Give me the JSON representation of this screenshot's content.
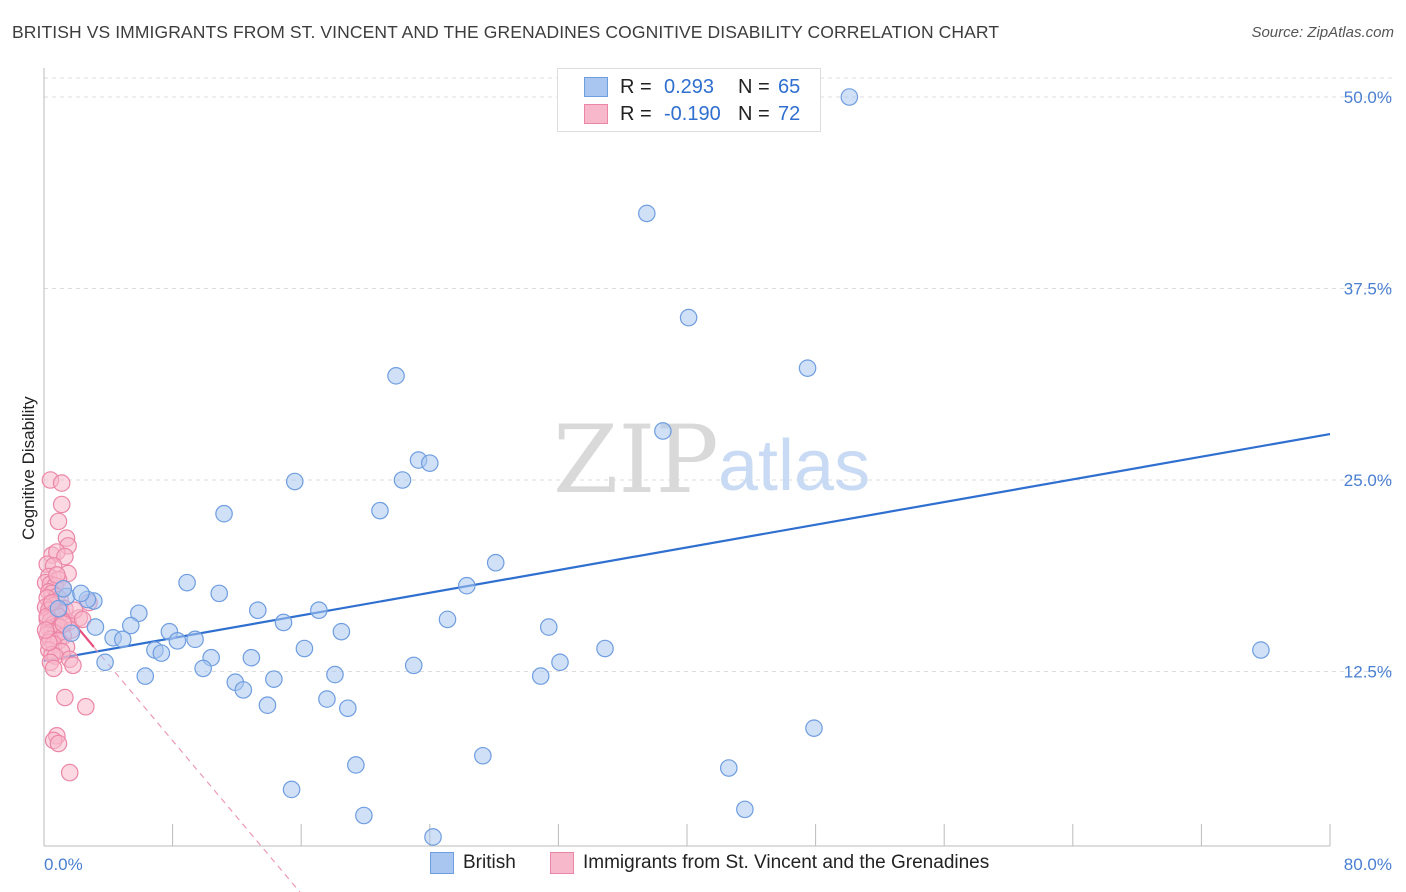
{
  "title": "BRITISH VS IMMIGRANTS FROM ST. VINCENT AND THE GRENADINES COGNITIVE DISABILITY CORRELATION CHART",
  "source": "Source: ZipAtlas.com",
  "watermark": {
    "zip": "ZIP",
    "atlas": "atlas"
  },
  "legend_top": [
    {
      "r_label": "R =",
      "r_value": "0.293",
      "n_label": "N =",
      "n_value": "65",
      "fill": "#a9c6f0",
      "stroke": "#6e9de0"
    },
    {
      "r_label": "R =",
      "r_value": "-0.190",
      "n_label": "N =",
      "n_value": "72",
      "fill": "#f7b8cb",
      "stroke": "#ec86a6"
    }
  ],
  "legend_bottom": [
    {
      "label": "British",
      "fill": "#a9c6f0",
      "stroke": "#6e9de0"
    },
    {
      "label": "Immigrants from St. Vincent and the Grenadines",
      "fill": "#f7b8cb",
      "stroke": "#ec86a6"
    }
  ],
  "chart_data": {
    "type": "scatter",
    "title": "BRITISH VS IMMIGRANTS FROM ST. VINCENT AND THE GRENADINES COGNITIVE DISABILITY CORRELATION CHART",
    "xlabel": "",
    "ylabel": "Cognitive Disability",
    "xlim": [
      0,
      80
    ],
    "ylim": [
      0,
      50
    ],
    "x_tick_labels": [
      "0.0%",
      "80.0%"
    ],
    "y_ticks": [
      12.5,
      25.0,
      37.5,
      50.0
    ],
    "y_tick_labels": [
      "12.5%",
      "25.0%",
      "37.5%",
      "50.0%"
    ],
    "grid": "horizontal dashed",
    "legend_position": "top-center",
    "colors": {
      "british": "#2f6fd0",
      "immigrants": "#e8507e"
    },
    "series": [
      {
        "name": "British",
        "color": "#a9c6f0",
        "stroke": "#6e9de0",
        "trend": {
          "x": [
            0,
            80
          ],
          "y": [
            13.2,
            28.0
          ],
          "style": "solid",
          "color": "#2f6fd0"
        },
        "points": [
          [
            50.1,
            50.0
          ],
          [
            37.5,
            42.4
          ],
          [
            40.1,
            35.6
          ],
          [
            47.5,
            32.3
          ],
          [
            21.9,
            31.8
          ],
          [
            38.5,
            28.2
          ],
          [
            23.3,
            26.3
          ],
          [
            24.0,
            26.1
          ],
          [
            22.3,
            25.0
          ],
          [
            15.6,
            24.9
          ],
          [
            20.9,
            23.0
          ],
          [
            11.2,
            22.8
          ],
          [
            28.1,
            19.6
          ],
          [
            8.9,
            18.3
          ],
          [
            26.3,
            18.1
          ],
          [
            10.9,
            17.6
          ],
          [
            1.4,
            17.4
          ],
          [
            3.1,
            17.1
          ],
          [
            2.7,
            17.2
          ],
          [
            13.3,
            16.5
          ],
          [
            17.1,
            16.5
          ],
          [
            5.9,
            16.3
          ],
          [
            25.1,
            15.9
          ],
          [
            14.9,
            15.7
          ],
          [
            3.2,
            15.4
          ],
          [
            5.4,
            15.5
          ],
          [
            31.4,
            15.4
          ],
          [
            18.5,
            15.1
          ],
          [
            7.8,
            15.1
          ],
          [
            4.3,
            14.7
          ],
          [
            4.9,
            14.6
          ],
          [
            8.3,
            14.5
          ],
          [
            9.4,
            14.6
          ],
          [
            16.2,
            14.0
          ],
          [
            34.9,
            14.0
          ],
          [
            75.7,
            13.9
          ],
          [
            6.9,
            13.9
          ],
          [
            7.3,
            13.7
          ],
          [
            10.4,
            13.4
          ],
          [
            12.9,
            13.4
          ],
          [
            3.8,
            13.1
          ],
          [
            32.1,
            13.1
          ],
          [
            23.0,
            12.9
          ],
          [
            9.9,
            12.7
          ],
          [
            18.1,
            12.3
          ],
          [
            30.9,
            12.2
          ],
          [
            6.3,
            12.2
          ],
          [
            14.3,
            12.0
          ],
          [
            11.9,
            11.8
          ],
          [
            12.4,
            11.3
          ],
          [
            17.6,
            10.7
          ],
          [
            13.9,
            10.3
          ],
          [
            18.9,
            10.1
          ],
          [
            47.9,
            8.8
          ],
          [
            27.3,
            7.0
          ],
          [
            19.4,
            6.4
          ],
          [
            42.6,
            6.2
          ],
          [
            15.4,
            4.8
          ],
          [
            19.9,
            3.1
          ],
          [
            43.6,
            3.5
          ],
          [
            24.2,
            1.7
          ],
          [
            1.2,
            17.9
          ],
          [
            2.3,
            17.6
          ],
          [
            0.9,
            16.6
          ],
          [
            1.7,
            15.0
          ]
        ]
      },
      {
        "name": "Immigrants from St. Vincent and the Grenadines",
        "color": "#f7b8cb",
        "stroke": "#ec86a6",
        "trend": {
          "x": [
            0,
            3.1
          ],
          "y": [
            18.0,
            14.1
          ],
          "style": "solid",
          "color": "#e8507e",
          "extension": {
            "x": [
              3.1,
              16.0
            ],
            "y": [
              14.1,
              -2.0
            ],
            "style": "dashed"
          }
        },
        "points": [
          [
            0.4,
            25.0
          ],
          [
            1.1,
            24.8
          ],
          [
            1.1,
            23.4
          ],
          [
            0.9,
            22.3
          ],
          [
            1.4,
            21.2
          ],
          [
            1.5,
            20.7
          ],
          [
            0.5,
            20.1
          ],
          [
            0.8,
            20.3
          ],
          [
            1.3,
            20.0
          ],
          [
            0.2,
            19.5
          ],
          [
            0.6,
            19.4
          ],
          [
            1.5,
            18.9
          ],
          [
            0.3,
            18.7
          ],
          [
            0.9,
            18.5
          ],
          [
            0.1,
            18.3
          ],
          [
            0.4,
            18.2
          ],
          [
            0.7,
            18.1
          ],
          [
            1.2,
            17.9
          ],
          [
            0.3,
            17.7
          ],
          [
            0.5,
            17.6
          ],
          [
            0.8,
            17.4
          ],
          [
            0.2,
            17.3
          ],
          [
            1.0,
            17.2
          ],
          [
            2.8,
            17.0
          ],
          [
            0.4,
            16.9
          ],
          [
            0.6,
            16.8
          ],
          [
            0.1,
            16.7
          ],
          [
            1.3,
            16.6
          ],
          [
            0.3,
            16.5
          ],
          [
            0.7,
            16.4
          ],
          [
            1.1,
            16.3
          ],
          [
            0.5,
            16.2
          ],
          [
            0.9,
            16.1
          ],
          [
            2.2,
            16.0
          ],
          [
            0.2,
            15.9
          ],
          [
            0.4,
            15.8
          ],
          [
            1.5,
            15.7
          ],
          [
            0.6,
            15.6
          ],
          [
            0.8,
            15.5
          ],
          [
            1.0,
            15.4
          ],
          [
            0.3,
            15.3
          ],
          [
            1.7,
            15.2
          ],
          [
            0.5,
            15.1
          ],
          [
            0.7,
            15.0
          ],
          [
            0.2,
            14.9
          ],
          [
            1.2,
            14.8
          ],
          [
            0.4,
            14.6
          ],
          [
            0.9,
            14.5
          ],
          [
            0.6,
            14.3
          ],
          [
            1.4,
            14.1
          ],
          [
            0.3,
            13.9
          ],
          [
            1.1,
            13.8
          ],
          [
            0.5,
            13.6
          ],
          [
            0.7,
            13.5
          ],
          [
            1.6,
            13.3
          ],
          [
            0.4,
            13.1
          ],
          [
            1.8,
            12.9
          ],
          [
            0.6,
            12.7
          ],
          [
            1.3,
            10.8
          ],
          [
            2.6,
            10.2
          ],
          [
            0.8,
            8.3
          ],
          [
            0.6,
            8.0
          ],
          [
            0.9,
            7.8
          ],
          [
            1.6,
            5.9
          ],
          [
            0.2,
            16.1
          ],
          [
            0.5,
            17.0
          ],
          [
            1.9,
            16.5
          ],
          [
            0.3,
            14.4
          ],
          [
            1.2,
            15.6
          ],
          [
            0.1,
            15.2
          ],
          [
            2.4,
            15.9
          ],
          [
            0.8,
            18.8
          ]
        ]
      }
    ]
  }
}
